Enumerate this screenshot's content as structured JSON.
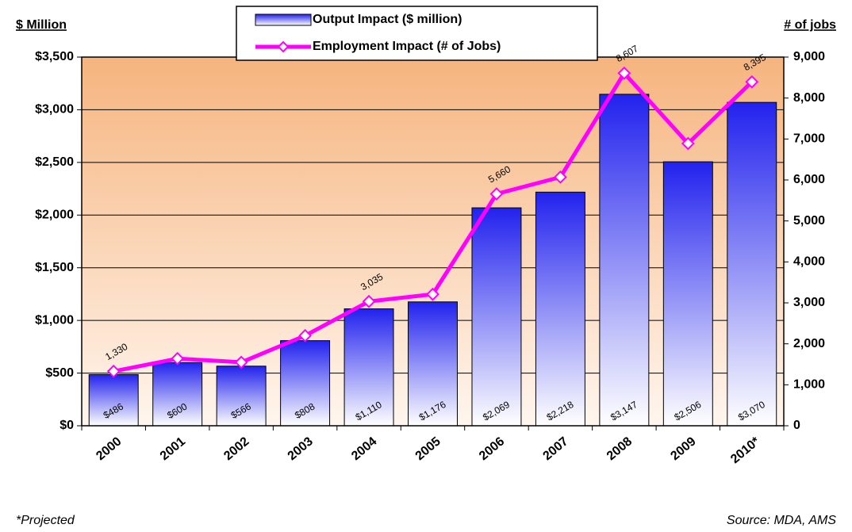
{
  "chart_data": {
    "type": "bar",
    "y_label": "$ Million",
    "y2_label": "# of jobs",
    "footnote": "*Projected",
    "source": "Source: MDA, AMS",
    "categories": [
      "2000",
      "2001",
      "2002",
      "2003",
      "2004",
      "2005",
      "2006",
      "2007",
      "2008",
      "2009",
      "2010*"
    ],
    "series": [
      {
        "name": "Output Impact ($ million)",
        "type": "bar",
        "color": "#2222ee",
        "values": [
          486,
          600,
          566,
          808,
          1110,
          1176,
          2069,
          2218,
          3147,
          2506,
          3070
        ],
        "value_labels": [
          "$486",
          "$600",
          "$566",
          "$808",
          "$1,110",
          "$1,176",
          "$2,069",
          "$2,218",
          "$3,147",
          "$2,506",
          "$3,070"
        ]
      },
      {
        "name": "Employment Impact (# of Jobs)",
        "type": "line",
        "axis": "y2",
        "color": "#ff00ff",
        "values": [
          1330,
          1640,
          1550,
          2200,
          3035,
          3210,
          5660,
          6070,
          8607,
          6890,
          8395
        ],
        "value_labels": [
          "1,330",
          null,
          null,
          null,
          "3,035",
          null,
          "5,660",
          null,
          "8,607",
          null,
          "8,395"
        ]
      }
    ],
    "ylim": [
      0,
      3500
    ],
    "yticks": [
      {
        "value": 0,
        "label": "$0"
      },
      {
        "value": 500,
        "label": "$500"
      },
      {
        "value": 1000,
        "label": "$1,000"
      },
      {
        "value": 1500,
        "label": "$1,500"
      },
      {
        "value": 2000,
        "label": "$2,000"
      },
      {
        "value": 2500,
        "label": "$2,500"
      },
      {
        "value": 3000,
        "label": "$3,000"
      },
      {
        "value": 3500,
        "label": "$3,500"
      }
    ],
    "y2lim": [
      0,
      9000
    ],
    "y2ticks": [
      0,
      {
        "value": 1000,
        "label": "1,000"
      },
      {
        "value": 2000,
        "label": "2,000"
      },
      {
        "value": 3000,
        "label": "3,000"
      },
      {
        "value": 4000,
        "label": "4,000"
      },
      {
        "value": 5000,
        "label": "5,000"
      },
      {
        "value": 6000,
        "label": "6,000"
      },
      {
        "value": 7000,
        "label": "7,000"
      },
      {
        "value": 8000,
        "label": "8,000"
      },
      {
        "value": 9000,
        "label": "9,000"
      }
    ],
    "grid": true
  }
}
